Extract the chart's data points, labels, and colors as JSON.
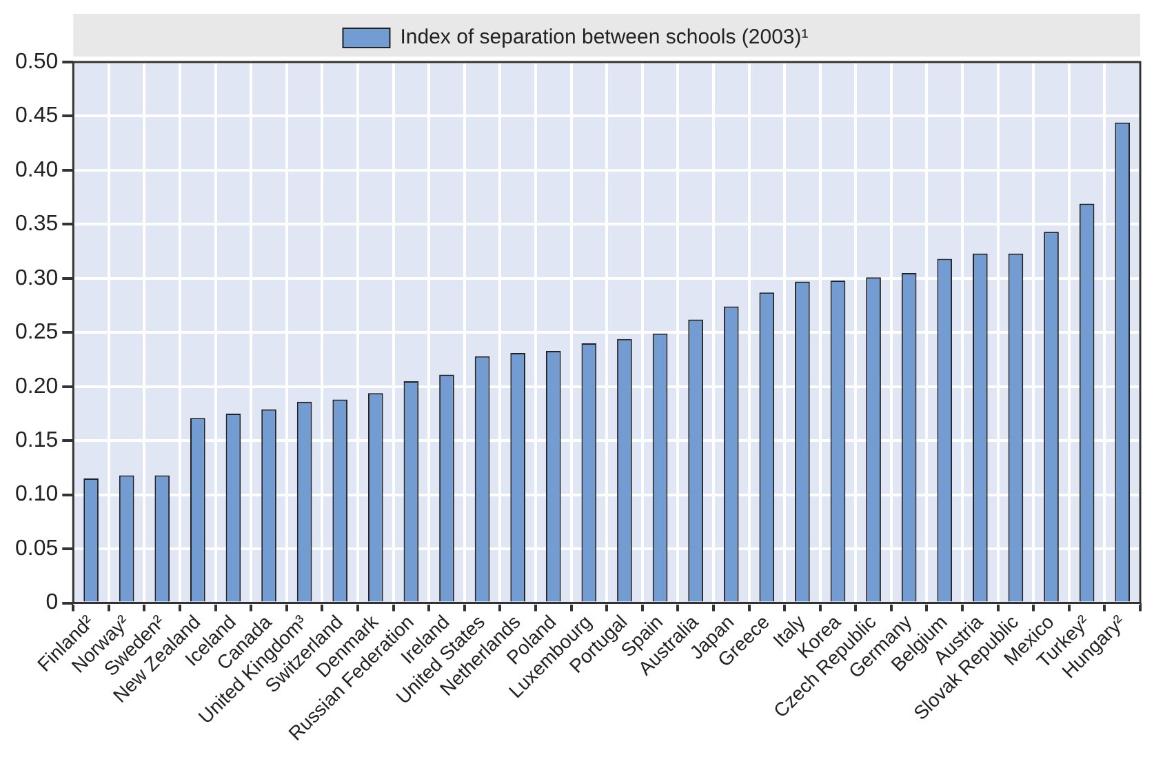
{
  "chart_data": {
    "type": "bar",
    "categories": [
      "Finland²",
      "Norway²",
      "Sweden²",
      "New Zealand",
      "Iceland",
      "Canada",
      "United Kingdom³",
      "Switzerland",
      "Denmark",
      "Russian Federation",
      "Ireland",
      "United States",
      "Netherlands",
      "Poland",
      "Luxembourg",
      "Portugal",
      "Spain",
      "Australia",
      "Japan",
      "Greece",
      "Italy",
      "Korea",
      "Czech Republic",
      "Germany",
      "Belgium",
      "Austria",
      "Slovak Republic",
      "Mexico",
      "Turkey²",
      "Hungary²"
    ],
    "series": [
      {
        "name": "Index of separation between schools (2003)¹",
        "color": "#739cd3",
        "values": [
          0.115,
          0.118,
          0.118,
          0.171,
          0.175,
          0.179,
          0.186,
          0.188,
          0.194,
          0.205,
          0.211,
          0.228,
          0.231,
          0.233,
          0.24,
          0.244,
          0.249,
          0.262,
          0.274,
          0.287,
          0.297,
          0.298,
          0.301,
          0.305,
          0.318,
          0.323,
          0.323,
          0.343,
          0.369,
          0.444
        ]
      }
    ],
    "ylim": [
      0,
      0.5
    ],
    "yticks": [
      0,
      0.05,
      {
        "value": 0.1,
        "label": "0.10"
      },
      0.15,
      {
        "value": 0.2,
        "label": "0.20"
      },
      0.25,
      {
        "value": 0.3,
        "label": "0.30"
      },
      0.35,
      {
        "value": 0.4,
        "label": "0.40"
      },
      0.45,
      {
        "value": 0.5,
        "label": "0.50"
      }
    ],
    "tick_labels": true,
    "grid": true,
    "legend": "top"
  }
}
